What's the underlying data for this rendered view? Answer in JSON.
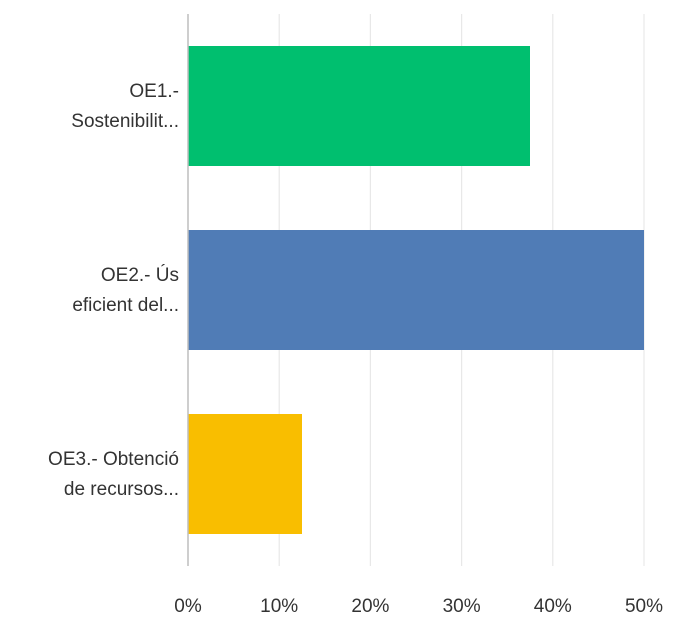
{
  "chart_data": {
    "type": "bar",
    "orientation": "horizontal",
    "categories": [
      [
        "OE1.-",
        "Sostenibilit..."
      ],
      [
        "OE2.- Ús",
        "eficient del..."
      ],
      [
        "OE3.- Obtenció",
        "de recursos..."
      ]
    ],
    "values": [
      37.5,
      50.0,
      12.5
    ],
    "colors": [
      "#00bf6f",
      "#507cb6",
      "#f9be00"
    ],
    "x_ticks": [
      "0%",
      "10%",
      "20%",
      "30%",
      "40%",
      "50%"
    ],
    "xlim": [
      0,
      50
    ],
    "grid": true,
    "title": "",
    "xlabel": "",
    "ylabel": ""
  }
}
